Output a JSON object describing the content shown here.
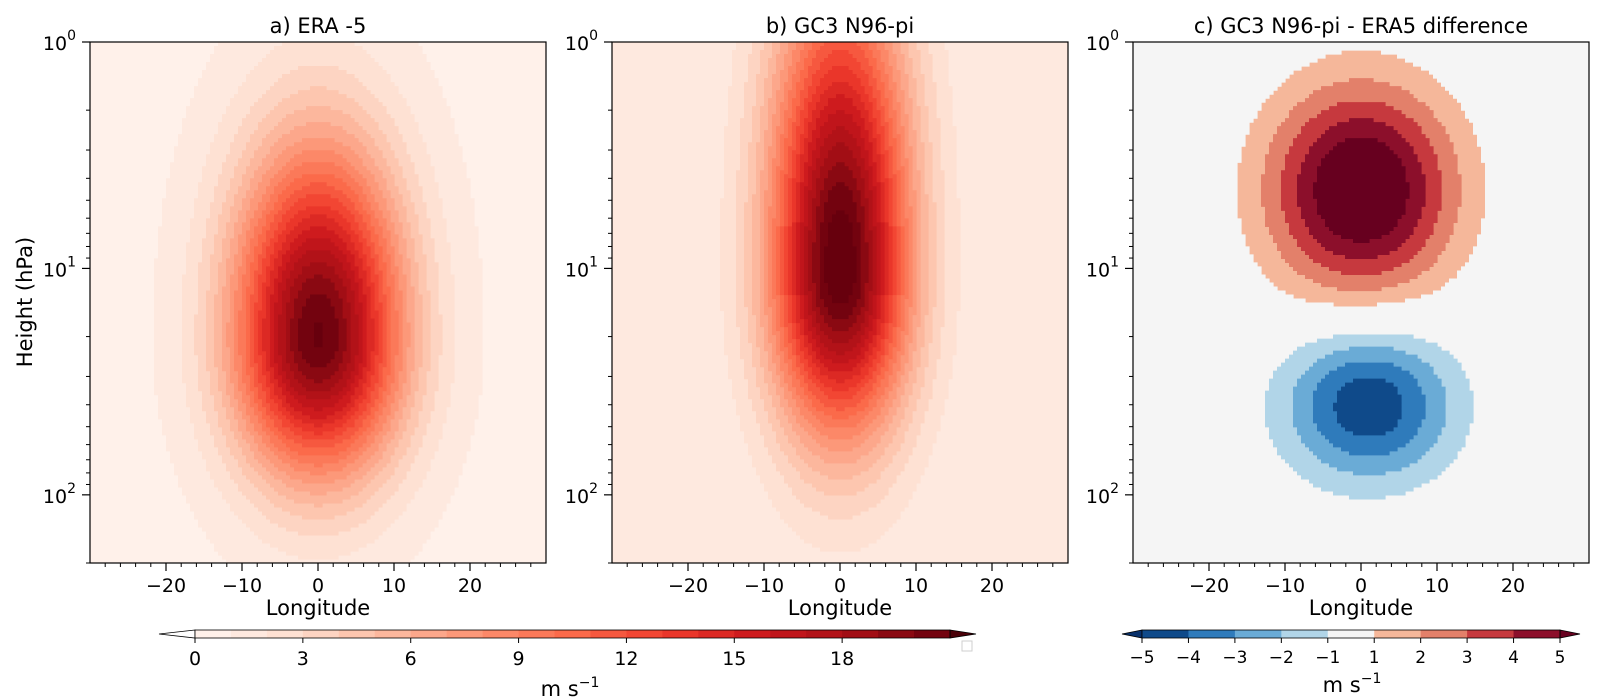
{
  "chart_data": [
    {
      "type": "heatmap",
      "panel": "a",
      "title": "a) ERA -5",
      "xlabel": "Longitude",
      "ylabel": "Height (hPa)",
      "xlim": [
        -30,
        30
      ],
      "ylim_hPa": [
        200,
        1
      ],
      "yscale": "log",
      "xticks": [
        -20,
        -10,
        0,
        10,
        20
      ],
      "yticks": [
        {
          "base": "10",
          "exp": "0"
        },
        {
          "base": "10",
          "exp": "1"
        },
        {
          "base": "10",
          "exp": "2"
        }
      ],
      "field": {
        "peak": 20.5,
        "peak_lon": 0,
        "peak_hPa": 20,
        "lon_width": 11,
        "log_width_up": 0.82,
        "log_width_down": 0.6,
        "background": 0.6
      },
      "colormap": "Reds"
    },
    {
      "type": "heatmap",
      "panel": "b",
      "title": "b) GC3 N96-pi",
      "xlabel": "Longitude",
      "ylabel": "",
      "xlim": [
        -30,
        30
      ],
      "ylim_hPa": [
        200,
        1
      ],
      "yscale": "log",
      "xticks": [
        -20,
        -10,
        0,
        10,
        20
      ],
      "yticks": [
        {
          "base": "10",
          "exp": "0"
        },
        {
          "base": "10",
          "exp": "1"
        },
        {
          "base": "10",
          "exp": "2"
        }
      ],
      "field": {
        "peak": 21,
        "peak_lon": 0,
        "peak_hPa": 10,
        "lon_width": 9,
        "log_width_up": 1.2,
        "log_width_down": 0.72,
        "background": 1.0
      },
      "colormap": "Reds"
    },
    {
      "type": "heatmap",
      "panel": "c",
      "title": "c) GC3 N96-pi - ERA5 difference",
      "xlabel": "Longitude",
      "ylabel": "",
      "xlim": [
        -30,
        30
      ],
      "ylim_hPa": [
        200,
        1
      ],
      "yscale": "log",
      "xticks": [
        -20,
        -10,
        0,
        10,
        20
      ],
      "yticks": [
        {
          "base": "10",
          "exp": "0"
        },
        {
          "base": "10",
          "exp": "1"
        },
        {
          "base": "10",
          "exp": "2"
        }
      ],
      "field": {
        "positive_peak": 6.5,
        "positive_lon": 0,
        "positive_hPa": 4.5,
        "negative_peak": -4.8,
        "negative_lon": 1,
        "negative_hPa": 40
      },
      "colormap": "RdBu_r"
    }
  ],
  "colorbars": [
    {
      "name": "reds",
      "levels": [
        0,
        1,
        2,
        3,
        4,
        5,
        6,
        7,
        8,
        9,
        10,
        11,
        12,
        13,
        14,
        15,
        16,
        17,
        18,
        19,
        20,
        21
      ],
      "ticks": [
        "0",
        "3",
        "6",
        "9",
        "12",
        "15",
        "18"
      ],
      "label_base": "m s",
      "label_exp": "−1",
      "extend": "both"
    },
    {
      "name": "diff",
      "levels": [
        -5,
        -4,
        -3,
        -2,
        -1,
        1,
        2,
        3,
        4,
        5
      ],
      "ticks": [
        "−5",
        "−4",
        "−3",
        "−2",
        "−1",
        "1",
        "2",
        "3",
        "4",
        "5"
      ],
      "label_base": "m s",
      "label_exp": "−1",
      "extend": "both"
    }
  ]
}
